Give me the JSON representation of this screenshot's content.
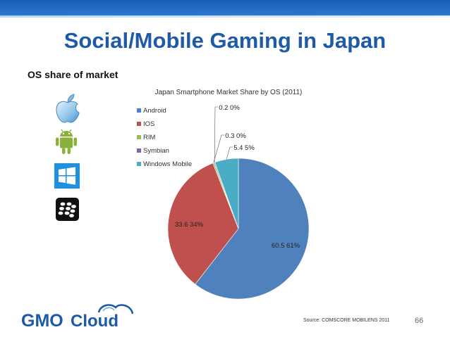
{
  "slide": {
    "title": "Social/Mobile Gaming in Japan",
    "subheading": "OS share of market",
    "source": "Source: COMSCORE MOBILENS 2011",
    "page_number": "66",
    "brand": {
      "part1": "GMO",
      "part2": "Cloud"
    }
  },
  "icons": [
    {
      "name": "apple-logo-icon"
    },
    {
      "name": "android-robot-icon"
    },
    {
      "name": "windows-logo-icon"
    },
    {
      "name": "blackberry-logo-icon"
    }
  ],
  "colors": {
    "title": "#1f5aa6",
    "brand_blue": "#1f5aa6",
    "accent_bar": "#1a5fb4"
  },
  "chart_data": {
    "type": "pie",
    "title": "Japan Smartphone Market Share by OS (2011)",
    "categories": [
      "Android",
      "IOS",
      "RIM",
      "Symbian",
      "Windows Mobile"
    ],
    "values": [
      60.5,
      33.6,
      0.3,
      0.2,
      5.4
    ],
    "labels": [
      "60.5 61%",
      "33.6 34%",
      "0.3 0%",
      "0.2 0%",
      "5.4 5%"
    ],
    "colors": [
      "#4f81bd",
      "#c0504d",
      "#9bbb59",
      "#8064a2",
      "#4bacc6"
    ],
    "legend_position": "left"
  }
}
